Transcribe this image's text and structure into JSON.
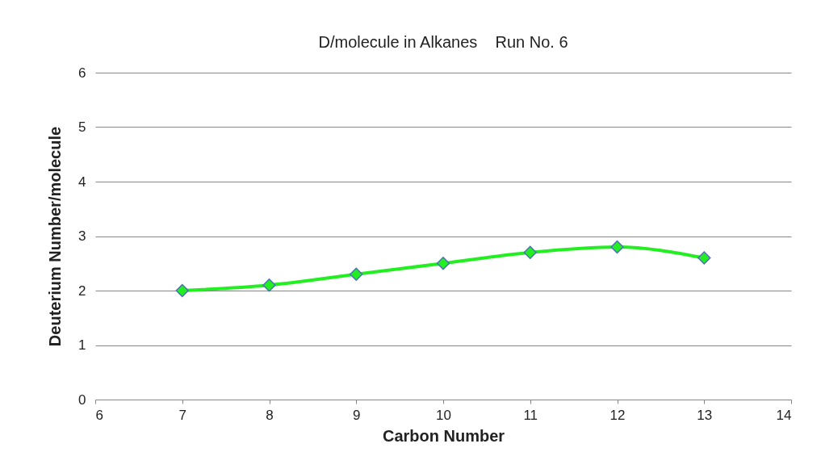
{
  "chart_data": {
    "type": "line",
    "title": "D/molecule in Alkanes    Run No. 6",
    "xlabel": "Carbon Number",
    "ylabel": "Deuterium Number/molecule",
    "x": [
      7,
      8,
      9,
      10,
      11,
      12,
      13
    ],
    "series": [
      {
        "color": "#22ee22",
        "values": [
          2.0,
          2.1,
          2.3,
          2.5,
          2.7,
          2.8,
          2.6
        ]
      }
    ],
    "xlim": [
      6,
      14
    ],
    "xticks": [
      6,
      7,
      8,
      9,
      10,
      11,
      12,
      13,
      14
    ],
    "ylim": [
      0,
      6
    ],
    "yticks": [
      0,
      1,
      2,
      3,
      4,
      5,
      6
    ],
    "grid": "y",
    "marker": "diamond",
    "line_style": "solid"
  }
}
